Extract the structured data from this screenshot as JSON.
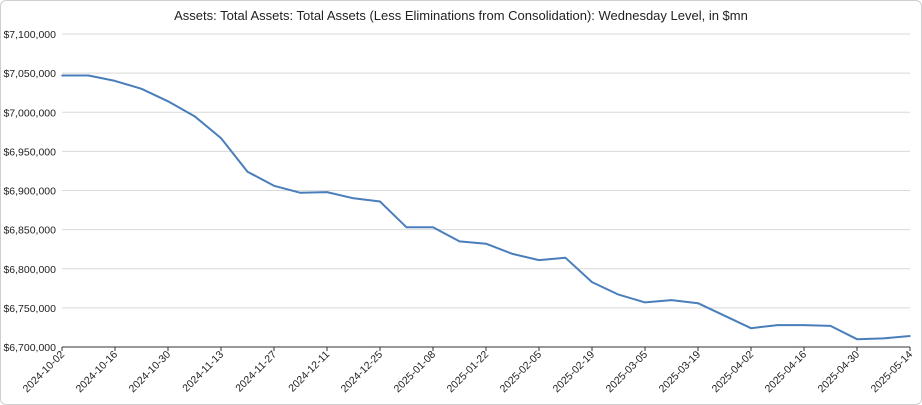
{
  "chart_data": {
    "type": "line",
    "title": "Assets: Total Assets: Total Assets (Less Eliminations from Consolidation): Wednesday Level, in $mn",
    "xlabel": "",
    "ylabel": "",
    "ylim": [
      6700000,
      7100000
    ],
    "y_ticks": [
      6700000,
      6750000,
      6800000,
      6850000,
      6900000,
      6950000,
      7000000,
      7050000,
      7100000
    ],
    "y_tick_labels": [
      "$6,700,000",
      "$6,750,000",
      "$6,800,000",
      "$6,850,000",
      "$6,900,000",
      "$6,950,000",
      "$7,000,000",
      "$7,050,000",
      "$7,100,000"
    ],
    "x_tick_labels": [
      "2024-10-02",
      "2024-10-16",
      "2024-10-30",
      "2024-11-13",
      "2024-11-27",
      "2024-12-11",
      "2024-12-25",
      "2025-01-08",
      "2025-01-22",
      "2025-02-05",
      "2025-02-19",
      "2025-03-05",
      "2025-03-19",
      "2025-04-02",
      "2025-04-16",
      "2025-04-30",
      "2025-05-14"
    ],
    "grid": true,
    "line_color": "#4a7ebb",
    "series": [
      {
        "x": [
          "2024-10-02",
          "2024-10-09",
          "2024-10-16",
          "2024-10-23",
          "2024-10-30",
          "2024-11-06",
          "2024-11-13",
          "2024-11-20",
          "2024-11-27",
          "2024-12-04",
          "2024-12-11",
          "2024-12-18",
          "2024-12-25",
          "2025-01-01",
          "2025-01-08",
          "2025-01-15",
          "2025-01-22",
          "2025-01-29",
          "2025-02-05",
          "2025-02-12",
          "2025-02-19",
          "2025-02-26",
          "2025-03-05",
          "2025-03-12",
          "2025-03-19",
          "2025-03-26",
          "2025-04-02",
          "2025-04-09",
          "2025-04-16",
          "2025-04-23",
          "2025-04-30",
          "2025-05-07",
          "2025-05-14"
        ],
        "values": [
          7047000,
          7047000,
          7040000,
          7030000,
          7014000,
          6995000,
          6967000,
          6924000,
          6906000,
          6897000,
          6898000,
          6890000,
          6886000,
          6853000,
          6853000,
          6835000,
          6832000,
          6819000,
          6811000,
          6814000,
          6783000,
          6767000,
          6757000,
          6760000,
          6756000,
          6740000,
          6724000,
          6728000,
          6728000,
          6727000,
          6710000,
          6711000,
          6714000
        ]
      }
    ]
  }
}
